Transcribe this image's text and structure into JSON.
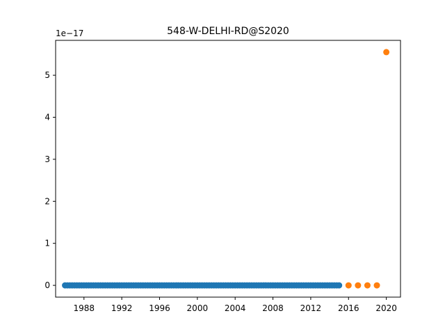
{
  "chart_data": {
    "type": "scatter",
    "title": "548-W-DELHI-RD@S2020",
    "xlabel": "",
    "ylabel": "",
    "y_offset_label": "1e−17",
    "xlim": [
      1985.0,
      2021.5
    ],
    "ylim": [
      -0.28,
      5.83
    ],
    "x_ticks": [
      1988,
      1992,
      1996,
      2000,
      2004,
      2008,
      2012,
      2016,
      2020
    ],
    "x_tick_labels": [
      "1988",
      "1992",
      "1996",
      "2000",
      "2004",
      "2008",
      "2012",
      "2016",
      "2020"
    ],
    "y_ticks": [
      0,
      1,
      2,
      3,
      4,
      5
    ],
    "y_tick_labels": [
      "0",
      "1",
      "2",
      "3",
      "4",
      "5"
    ],
    "grid": false,
    "series": [
      {
        "color": "#1f77b4",
        "x_start": 1986.0,
        "x_end": 2015.0,
        "x_step": 0.25,
        "y_constant": 0
      },
      {
        "color": "#ff7f0e",
        "x": [
          2016,
          2017,
          2018,
          2019,
          2020
        ],
        "y": [
          0,
          0,
          0,
          0,
          5.55
        ]
      }
    ]
  }
}
